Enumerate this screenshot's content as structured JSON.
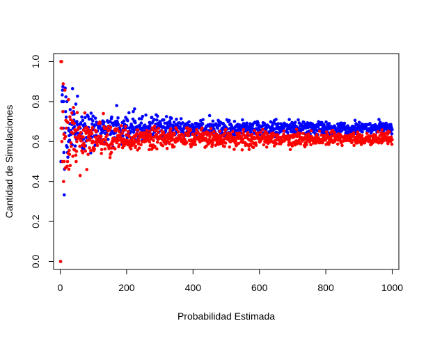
{
  "chart_data": {
    "type": "scatter",
    "title": "",
    "xlabel": "Probabilidad Estimada",
    "ylabel": "Cantidad de Simulaciones",
    "xlim": [
      -20,
      1020
    ],
    "ylim": [
      -0.04,
      1.04
    ],
    "x_ticks": [
      0,
      200,
      400,
      600,
      800,
      1000
    ],
    "y_ticks": [
      "0.0",
      "0.2",
      "0.4",
      "0.6",
      "0.8",
      "1.0"
    ],
    "grid": false,
    "legend": "none",
    "n_points": 1000,
    "series": [
      {
        "color": "#0000ff",
        "converges_to": 0.667,
        "sample_points": [
          [
            1,
            0.0
          ],
          [
            2,
            0.5
          ],
          [
            3,
            0.667
          ],
          [
            5,
            0.8
          ],
          [
            8,
            0.875
          ],
          [
            10,
            0.8
          ],
          [
            12,
            0.333
          ],
          [
            15,
            0.867
          ],
          [
            20,
            0.8
          ],
          [
            25,
            0.6
          ],
          [
            30,
            0.76
          ],
          [
            40,
            0.75
          ],
          [
            50,
            0.7
          ],
          [
            75,
            0.72
          ],
          [
            100,
            0.66
          ],
          [
            150,
            0.7
          ],
          [
            170,
            0.78
          ],
          [
            220,
            0.75
          ],
          [
            300,
            0.7
          ],
          [
            400,
            0.68
          ],
          [
            450,
            0.73
          ],
          [
            500,
            0.67
          ],
          [
            600,
            0.68
          ],
          [
            700,
            0.67
          ],
          [
            800,
            0.67
          ],
          [
            900,
            0.68
          ],
          [
            1000,
            0.66
          ]
        ]
      },
      {
        "color": "#ff0000",
        "converges_to": 0.615,
        "sample_points": [
          [
            1,
            0.0
          ],
          [
            2,
            1.0
          ],
          [
            3,
            0.667
          ],
          [
            5,
            0.6
          ],
          [
            7,
            0.5
          ],
          [
            10,
            0.4
          ],
          [
            15,
            0.467
          ],
          [
            20,
            0.7
          ],
          [
            25,
            0.81
          ],
          [
            30,
            0.48
          ],
          [
            40,
            0.77
          ],
          [
            50,
            0.6
          ],
          [
            60,
            0.43
          ],
          [
            80,
            0.46
          ],
          [
            100,
            0.57
          ],
          [
            130,
            0.74
          ],
          [
            150,
            0.52
          ],
          [
            200,
            0.6
          ],
          [
            300,
            0.62
          ],
          [
            400,
            0.6
          ],
          [
            500,
            0.62
          ],
          [
            600,
            0.6
          ],
          [
            700,
            0.62
          ],
          [
            800,
            0.61
          ],
          [
            900,
            0.6
          ],
          [
            1000,
            0.61
          ]
        ]
      }
    ]
  }
}
